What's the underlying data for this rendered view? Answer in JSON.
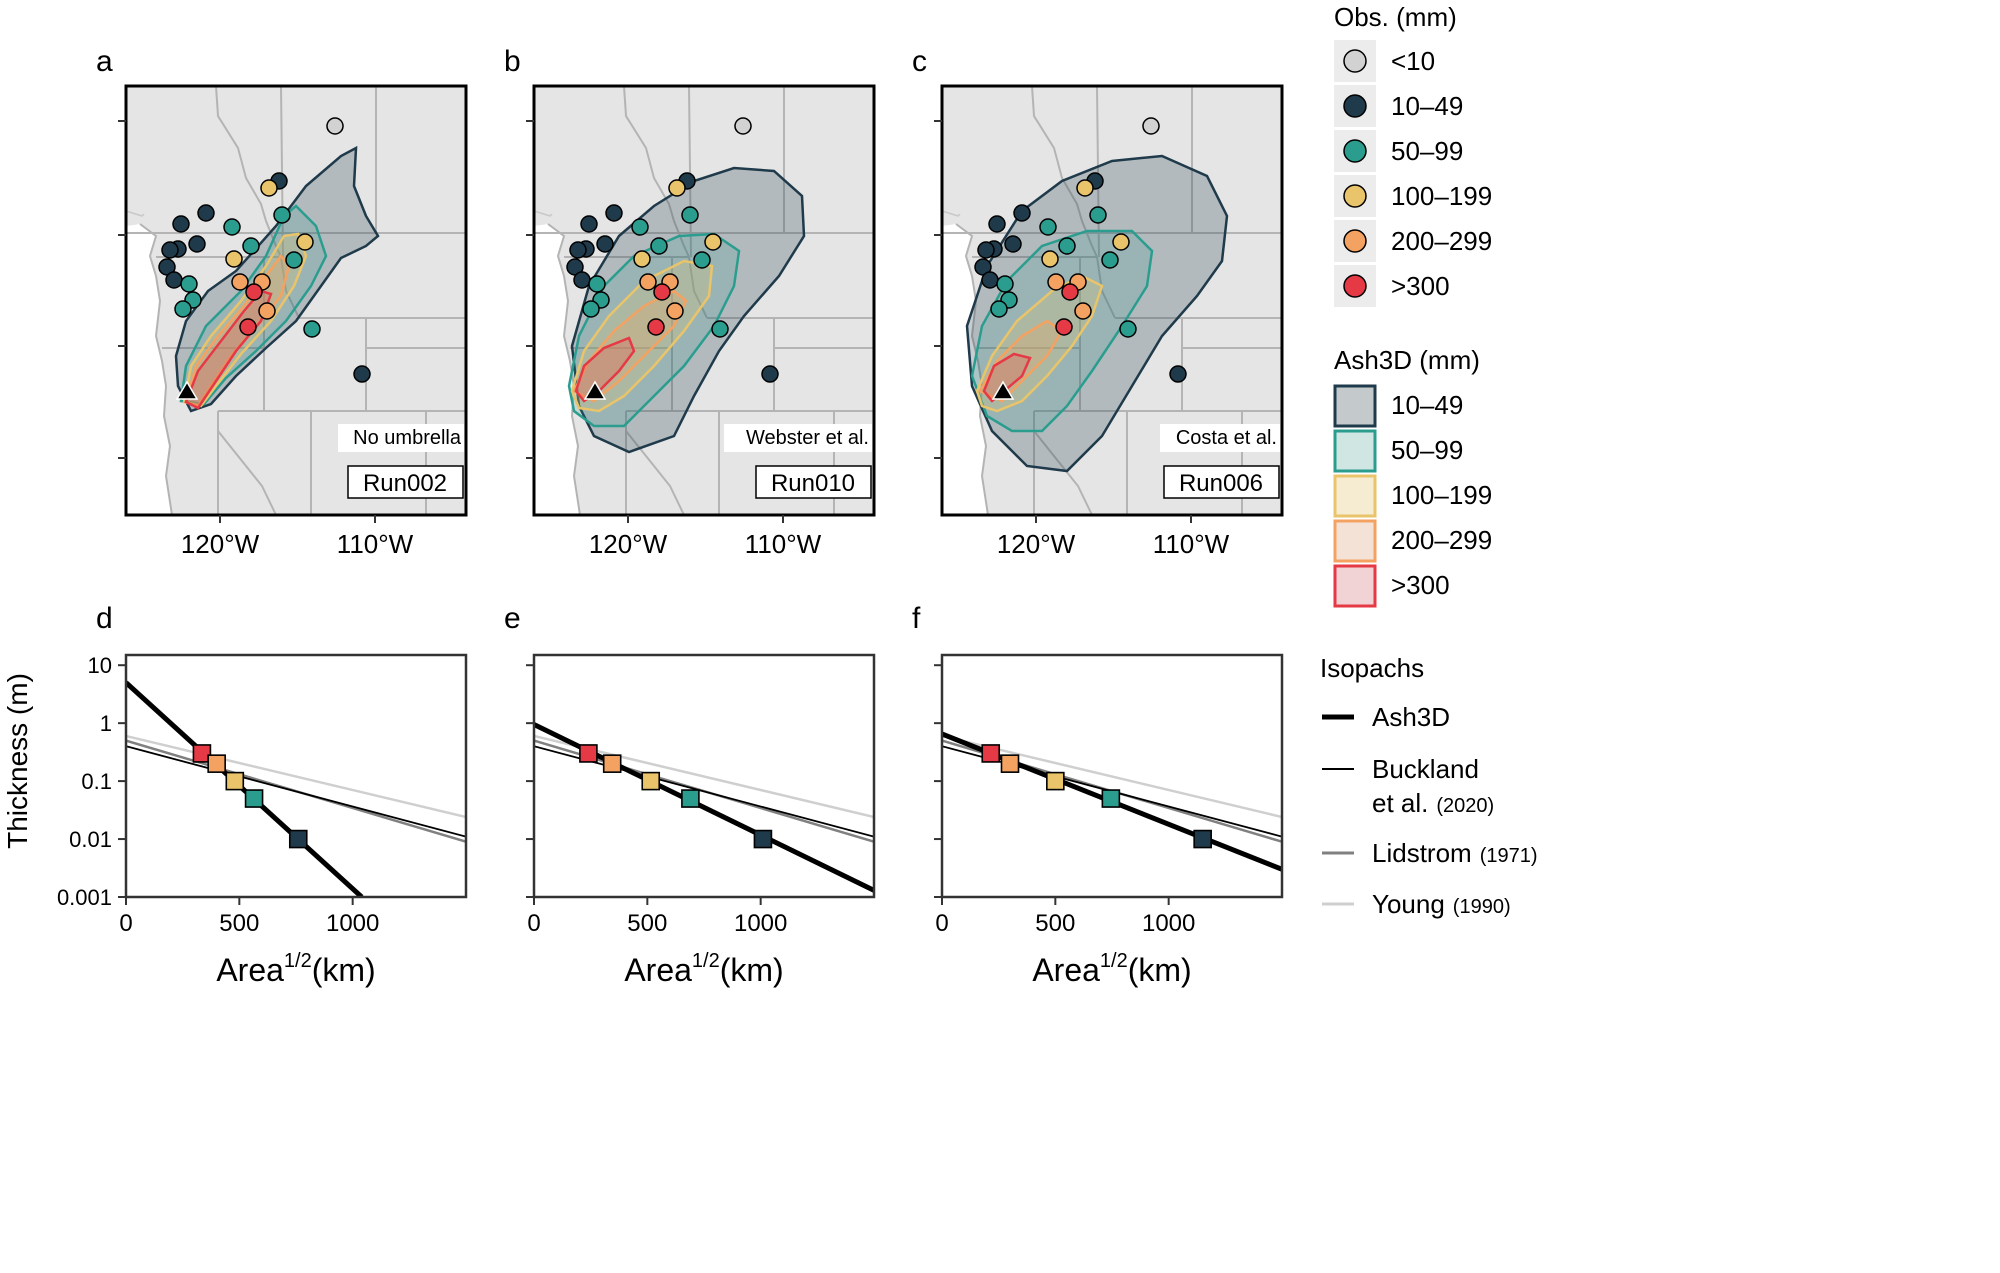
{
  "colors": {
    "lt10": "#d2d2d2",
    "c10_49": "#1f3a4a",
    "c50_99": "#2a9d8f",
    "c100_199": "#e9c46a",
    "c200_299": "#f4a261",
    "c300": "#e63946",
    "map_bg": "#e5e5e5",
    "borders": "#b4b4b4",
    "buckland": "#000000",
    "lidstrom": "#808080",
    "young": "#cfcfcf"
  },
  "maps": {
    "x_ticks": [
      "120°W",
      "110°W"
    ],
    "panels": [
      {
        "id": "a",
        "label": "a",
        "scheme": "No umbrella",
        "run": "Run002"
      },
      {
        "id": "b",
        "label": "b",
        "scheme": "Webster et al.",
        "run": "Run010"
      },
      {
        "id": "c",
        "label": "c",
        "scheme": "Costa et al.",
        "run": "Run006"
      }
    ]
  },
  "legend_obs": {
    "title": "Obs. (mm)",
    "items": [
      {
        "label": "<10",
        "color_key": "lt10"
      },
      {
        "label": "10–49",
        "color_key": "c10_49"
      },
      {
        "label": "50–99",
        "color_key": "c50_99"
      },
      {
        "label": "100–199",
        "color_key": "c100_199"
      },
      {
        "label": "200–299",
        "color_key": "c200_299"
      },
      {
        "label": ">300",
        "color_key": "c300"
      }
    ]
  },
  "legend_ash3d": {
    "title": "Ash3D (mm)",
    "items": [
      {
        "label": "10–49",
        "color_key": "c10_49"
      },
      {
        "label": "50–99",
        "color_key": "c50_99"
      },
      {
        "label": "100–199",
        "color_key": "c100_199"
      },
      {
        "label": "200–299",
        "color_key": "c200_299"
      },
      {
        "label": ">300",
        "color_key": "c300"
      }
    ]
  },
  "legend_isopachs": {
    "title": "Isopachs",
    "items": [
      {
        "name": "Ash3D",
        "ref": ""
      },
      {
        "name": "Buckland",
        "name2": "et al.",
        "ref": "(2020)"
      },
      {
        "name": "Lidstrom",
        "ref": "(1971)"
      },
      {
        "name": "Young",
        "ref": "(1990)"
      }
    ]
  },
  "chart_data": [
    {
      "type": "scatter",
      "panel": "d",
      "label": "d",
      "ylabel": "Thickness (m)",
      "xlabel_base": "Area",
      "xlabel_sup": "1/2",
      "xlabel_unit": "(km)",
      "xlim": [
        0,
        1500
      ],
      "ylim": [
        0.001,
        15
      ],
      "ylog": true,
      "x_ticks": [
        0,
        500,
        1000
      ],
      "y_ticks": [
        {
          "v": 10,
          "t": "10"
        },
        {
          "v": 1,
          "t": "1"
        },
        {
          "v": 0.1,
          "t": "0.1"
        },
        {
          "v": 0.01,
          "t": "0.01"
        },
        {
          "v": 0.001,
          "t": "0.001"
        }
      ],
      "ash3d_points": [
        {
          "x": 335,
          "y": 0.3,
          "color_key": "c300"
        },
        {
          "x": 400,
          "y": 0.2,
          "color_key": "c200_299"
        },
        {
          "x": 480,
          "y": 0.1,
          "color_key": "c100_199"
        },
        {
          "x": 565,
          "y": 0.05,
          "color_key": "c50_99"
        },
        {
          "x": 760,
          "y": 0.01,
          "color_key": "c10_49"
        }
      ],
      "ash3d_fit": [
        [
          0,
          5
        ],
        [
          1040,
          0.001
        ]
      ],
      "buckland_fit": [
        [
          0,
          0.4
        ],
        [
          1500,
          0.011
        ]
      ],
      "lidstrom_fit": [
        [
          0,
          0.5
        ],
        [
          1500,
          0.009
        ]
      ],
      "young_fit": [
        [
          0,
          0.6
        ],
        [
          1500,
          0.024
        ]
      ]
    },
    {
      "type": "scatter",
      "panel": "e",
      "label": "e",
      "xlabel_base": "Area",
      "xlabel_sup": "1/2",
      "xlabel_unit": "(km)",
      "xlim": [
        0,
        1500
      ],
      "ylim": [
        0.001,
        15
      ],
      "ylog": true,
      "x_ticks": [
        0,
        500,
        1000
      ],
      "ash3d_points": [
        {
          "x": 240,
          "y": 0.3,
          "color_key": "c300"
        },
        {
          "x": 345,
          "y": 0.2,
          "color_key": "c200_299"
        },
        {
          "x": 515,
          "y": 0.1,
          "color_key": "c100_199"
        },
        {
          "x": 690,
          "y": 0.05,
          "color_key": "c50_99"
        },
        {
          "x": 1010,
          "y": 0.01,
          "color_key": "c10_49"
        }
      ],
      "ash3d_fit": [
        [
          0,
          0.95
        ],
        [
          1500,
          0.0013
        ]
      ],
      "buckland_fit": [
        [
          0,
          0.4
        ],
        [
          1500,
          0.011
        ]
      ],
      "lidstrom_fit": [
        [
          0,
          0.5
        ],
        [
          1500,
          0.009
        ]
      ],
      "young_fit": [
        [
          0,
          0.6
        ],
        [
          1500,
          0.024
        ]
      ]
    },
    {
      "type": "scatter",
      "panel": "f",
      "label": "f",
      "xlabel_base": "Area",
      "xlabel_sup": "1/2",
      "xlabel_unit": "(km)",
      "xlim": [
        0,
        1500
      ],
      "ylim": [
        0.001,
        15
      ],
      "ylog": true,
      "x_ticks": [
        0,
        500,
        1000
      ],
      "ash3d_points": [
        {
          "x": 215,
          "y": 0.3,
          "color_key": "c300"
        },
        {
          "x": 300,
          "y": 0.2,
          "color_key": "c200_299"
        },
        {
          "x": 500,
          "y": 0.1,
          "color_key": "c100_199"
        },
        {
          "x": 745,
          "y": 0.05,
          "color_key": "c50_99"
        },
        {
          "x": 1150,
          "y": 0.01,
          "color_key": "c10_49"
        }
      ],
      "ash3d_fit": [
        [
          0,
          0.65
        ],
        [
          1500,
          0.003
        ]
      ],
      "buckland_fit": [
        [
          0,
          0.4
        ],
        [
          1500,
          0.011
        ]
      ],
      "lidstrom_fit": [
        [
          0,
          0.5
        ],
        [
          1500,
          0.009
        ]
      ],
      "young_fit": [
        [
          0,
          0.6
        ],
        [
          1500,
          0.024
        ]
      ]
    }
  ]
}
